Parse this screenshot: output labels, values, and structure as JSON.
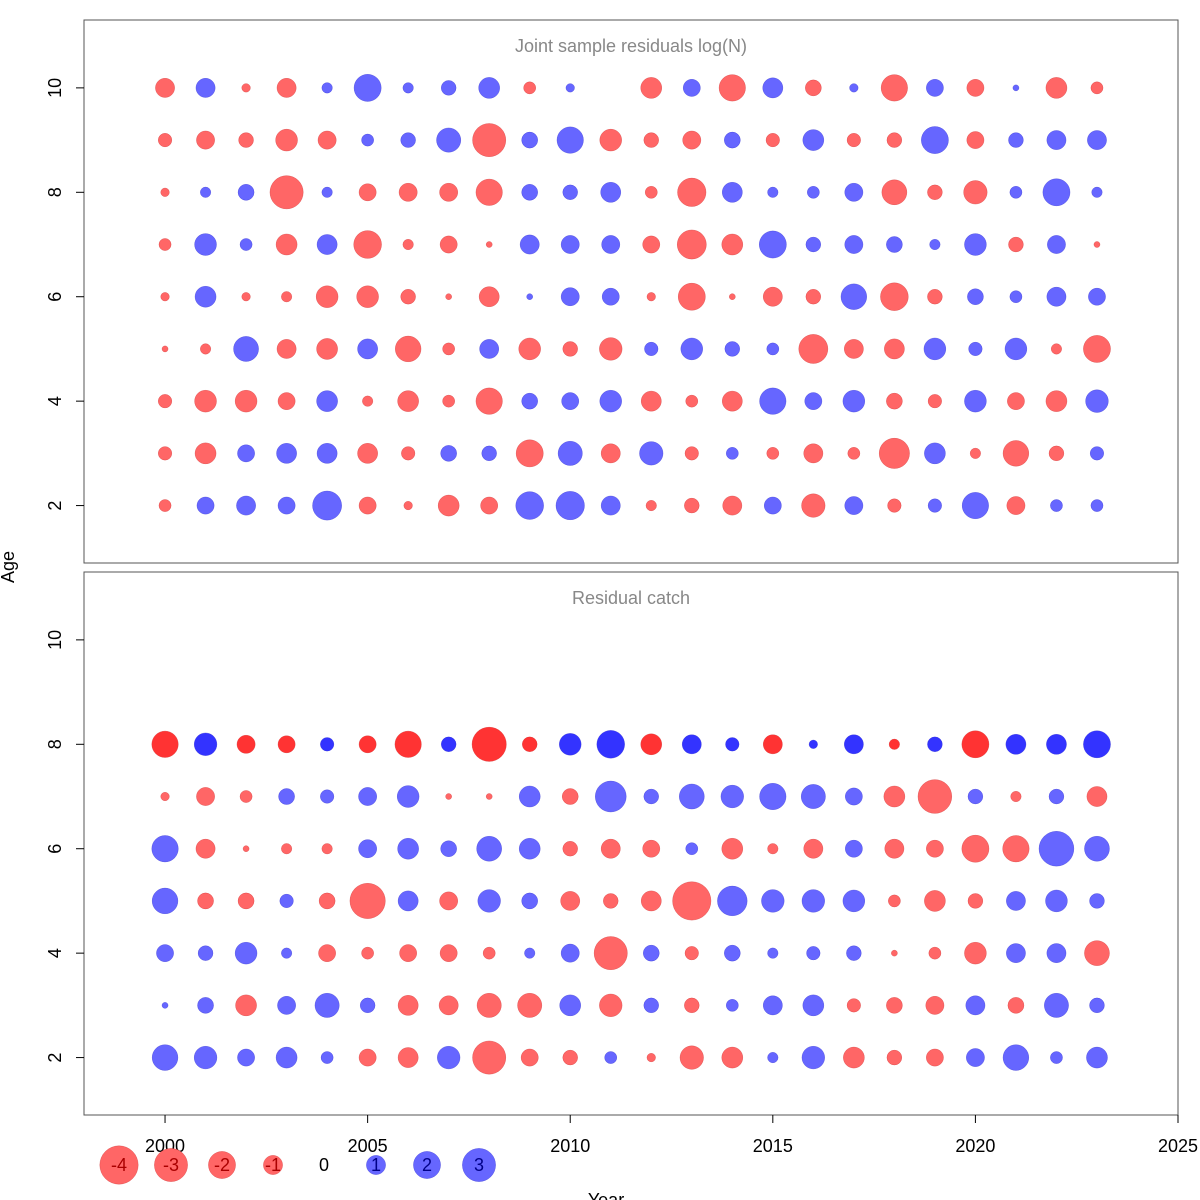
{
  "chart_data": {
    "type": "bubble",
    "shared_axes": {
      "xlabel": "Year",
      "ylabel": "Age",
      "xlim": [
        1998,
        2025
      ],
      "xticks": [
        2000,
        2005,
        2010,
        2015,
        2020,
        2025
      ],
      "years": [
        2000,
        2001,
        2002,
        2003,
        2004,
        2005,
        2006,
        2007,
        2008,
        2009,
        2010,
        2011,
        2012,
        2013,
        2014,
        2015,
        2016,
        2017,
        2018,
        2019,
        2020,
        2021,
        2022,
        2023
      ]
    },
    "colors": {
      "negative": "#FF6666",
      "positive": "#6666FF",
      "negative_dark": "#FF3333",
      "positive_dark": "#3333FF"
    },
    "legend": [
      {
        "label": "-4",
        "value": -4
      },
      {
        "label": "-3",
        "value": -3
      },
      {
        "label": "-2",
        "value": -2
      },
      {
        "label": "-1",
        "value": -1
      },
      {
        "label": "0",
        "value": 0
      },
      {
        "label": "1",
        "value": 1
      },
      {
        "label": "2",
        "value": 2
      },
      {
        "label": "3",
        "value": 3
      }
    ],
    "panels": [
      {
        "title": "Joint sample residuals log(N)",
        "ylim": [
          0.9,
          11.3
        ],
        "yticks": [
          2,
          4,
          6,
          8,
          10
        ],
        "ages": [
          2,
          3,
          4,
          5,
          6,
          7,
          8,
          9,
          10
        ],
        "residuals": [
          [
            -0.4,
            -0.5,
            -0.5,
            -0.1,
            -0.2,
            -0.4,
            -0.2,
            -0.5,
            -1.0
          ],
          [
            0.8,
            -1.2,
            -1.3,
            -0.3,
            1.2,
            1.3,
            0.3,
            -0.9,
            1.0
          ],
          [
            1.0,
            0.8,
            -1.3,
            1.7,
            -0.2,
            0.4,
            0.7,
            -0.6,
            -0.2
          ],
          [
            0.8,
            1.1,
            -0.8,
            -1.0,
            -0.3,
            -1.2,
            -3.0,
            -1.3,
            -1.0
          ],
          [
            2.3,
            1.1,
            1.2,
            -1.2,
            -1.3,
            1.1,
            0.3,
            -0.9,
            0.3
          ],
          [
            -0.8,
            -1.1,
            -0.3,
            1.1,
            -1.3,
            -2.1,
            -0.8,
            0.4,
            2.0
          ],
          [
            -0.2,
            -0.5,
            -1.2,
            -1.8,
            -0.6,
            -0.3,
            -0.9,
            0.6,
            0.3
          ],
          [
            -1.2,
            0.7,
            -0.4,
            -0.4,
            -0.1,
            -0.8,
            -0.9,
            1.6,
            0.6
          ],
          [
            -0.8,
            0.6,
            -1.9,
            1.0,
            -1.1,
            -0.1,
            -1.9,
            -3.0,
            1.2
          ],
          [
            2.1,
            -2.0,
            0.7,
            -1.3,
            0.1,
            1.0,
            0.7,
            0.7,
            -0.4
          ],
          [
            2.2,
            1.6,
            0.8,
            -0.6,
            0.9,
            0.9,
            0.6,
            1.9,
            0.2
          ],
          [
            1.0,
            -1.0,
            1.3,
            -1.4,
            0.8,
            0.9,
            1.1,
            -1.3,
            -0.0
          ],
          [
            -0.3,
            1.5,
            -1.1,
            0.5,
            -0.2,
            -0.8,
            -0.4,
            -0.6,
            -1.2
          ],
          [
            -0.6,
            -0.5,
            -0.4,
            1.3,
            -2.0,
            -2.3,
            -2.2,
            -0.9,
            0.8
          ],
          [
            -1.0,
            0.4,
            -1.1,
            0.6,
            -0.1,
            -1.2,
            1.1,
            0.7,
            -1.9
          ],
          [
            0.8,
            -0.4,
            1.9,
            0.4,
            -1.0,
            2.0,
            0.3,
            -0.5,
            1.1
          ],
          [
            -1.5,
            -1.0,
            0.8,
            -2.3,
            -0.6,
            0.6,
            0.4,
            1.2,
            -0.7
          ],
          [
            0.9,
            -0.4,
            1.3,
            -1.0,
            1.8,
            0.9,
            0.9,
            -0.5,
            0.2
          ],
          [
            -0.5,
            -2.5,
            -0.7,
            -1.1,
            -2.1,
            0.7,
            -1.7,
            -0.6,
            -1.9
          ],
          [
            0.5,
            1.2,
            -0.5,
            1.3,
            -0.6,
            0.3,
            -0.6,
            2.0,
            0.8
          ],
          [
            1.9,
            -0.3,
            1.3,
            0.5,
            0.7,
            1.3,
            -1.5,
            -0.8,
            -0.8
          ],
          [
            -0.9,
            -1.8,
            -0.8,
            1.3,
            0.4,
            -0.6,
            0.4,
            0.6,
            0.1
          ],
          [
            0.4,
            -0.6,
            -1.2,
            -0.3,
            1.0,
            0.9,
            2.0,
            1.0,
            -1.2
          ],
          [
            0.4,
            0.5,
            1.4,
            -2.0,
            0.8,
            -0.1,
            0.3,
            1.0,
            -0.4
          ]
        ]
      },
      {
        "title": "Residual catch",
        "ylim": [
          0.9,
          11.3
        ],
        "yticks": [
          2,
          4,
          6,
          8,
          10
        ],
        "ages": [
          2,
          3,
          4,
          5,
          6,
          7,
          8
        ],
        "residuals": [
          [
            1.8,
            0.1,
            0.8,
            1.8,
            1.9,
            -0.2,
            -1.9
          ],
          [
            1.4,
            0.7,
            0.6,
            -0.7,
            -1.0,
            -0.9,
            1.4
          ],
          [
            0.8,
            -1.2,
            1.3,
            -0.7,
            -0.1,
            -0.4,
            -0.9
          ],
          [
            1.2,
            0.9,
            0.3,
            0.5,
            -0.3,
            0.7,
            -0.8
          ],
          [
            0.4,
            1.6,
            -0.8,
            -0.7,
            -0.3,
            0.5,
            0.5
          ],
          [
            -0.8,
            0.6,
            -0.4,
            -3.4,
            0.9,
            0.9,
            -0.8
          ],
          [
            -1.1,
            -1.1,
            -0.8,
            1.1,
            1.2,
            1.3,
            -1.9
          ],
          [
            1.4,
            -1.0,
            -0.8,
            -0.9,
            0.7,
            -0.1,
            0.6
          ],
          [
            -3.0,
            -1.6,
            -0.4,
            1.4,
            1.7,
            -0.1,
            -3.2
          ],
          [
            -0.8,
            -1.6,
            0.3,
            0.7,
            1.2,
            1.2,
            -0.6
          ],
          [
            -0.6,
            1.2,
            0.9,
            -1.0,
            -0.6,
            -0.7,
            1.3
          ],
          [
            0.4,
            -1.4,
            -3.0,
            -0.6,
            -1.0,
            2.6,
            2.1
          ],
          [
            -0.2,
            0.6,
            0.7,
            -1.1,
            -0.8,
            0.6,
            -1.2
          ],
          [
            -1.5,
            -0.6,
            -0.5,
            -4.0,
            0.4,
            1.7,
            1.0
          ],
          [
            -1.2,
            0.4,
            0.7,
            2.4,
            -1.2,
            1.4,
            0.5
          ],
          [
            0.3,
            1.0,
            0.3,
            1.4,
            -0.3,
            1.9,
            -1.0
          ],
          [
            1.4,
            1.2,
            0.5,
            1.4,
            -1.0,
            1.6,
            0.2
          ],
          [
            -1.2,
            -0.5,
            0.6,
            1.3,
            0.8,
            0.8,
            1.0
          ],
          [
            -0.6,
            -0.7,
            -0.1,
            -0.4,
            -1.0,
            -1.2,
            -0.3
          ],
          [
            -0.8,
            -0.9,
            -0.4,
            -1.2,
            -0.8,
            -3.1,
            0.6
          ],
          [
            0.9,
            1.0,
            -1.3,
            -0.6,
            -2.0,
            0.6,
            -2.0
          ],
          [
            1.8,
            -0.7,
            1.0,
            1.0,
            -1.9,
            -0.3,
            1.1
          ],
          [
            0.4,
            1.6,
            1.0,
            1.3,
            3.3,
            0.6,
            1.1
          ],
          [
            1.2,
            0.6,
            -1.7,
            0.6,
            1.7,
            -1.1,
            2.0
          ]
        ]
      }
    ]
  }
}
